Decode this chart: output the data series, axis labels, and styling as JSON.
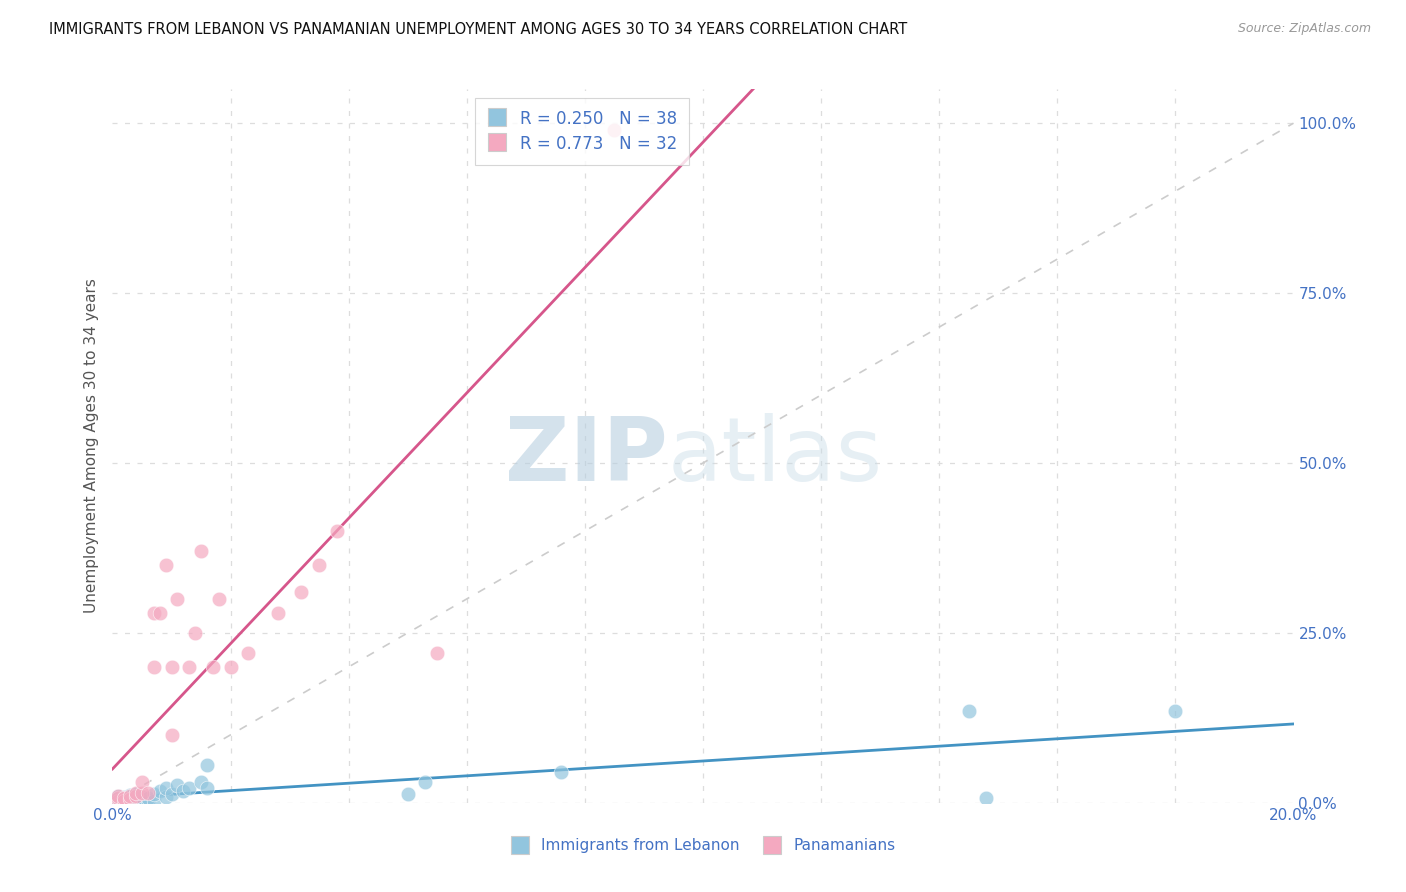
{
  "title": "IMMIGRANTS FROM LEBANON VS PANAMANIAN UNEMPLOYMENT AMONG AGES 30 TO 34 YEARS CORRELATION CHART",
  "source": "Source: ZipAtlas.com",
  "ylabel_label": "Unemployment Among Ages 30 to 34 years",
  "legend_label1": "Immigrants from Lebanon",
  "legend_label2": "Panamanians",
  "R1": 0.25,
  "N1": 38,
  "R2": 0.773,
  "N2": 32,
  "color_blue": "#92c5de",
  "color_pink": "#f4a9c0",
  "color_blue_line": "#4393c3",
  "color_pink_line": "#d6568b",
  "color_diag": "#cccccc",
  "watermark_zip": "ZIP",
  "watermark_atlas": "atlas",
  "blue_x": [
    0.0005,
    0.001,
    0.001,
    0.0015,
    0.002,
    0.002,
    0.002,
    0.0025,
    0.003,
    0.003,
    0.003,
    0.003,
    0.004,
    0.004,
    0.004,
    0.005,
    0.005,
    0.005,
    0.006,
    0.006,
    0.007,
    0.007,
    0.008,
    0.009,
    0.009,
    0.01,
    0.011,
    0.012,
    0.013,
    0.015,
    0.016,
    0.016,
    0.05,
    0.053,
    0.076,
    0.145,
    0.148,
    0.18
  ],
  "blue_y": [
    0.003,
    0.006,
    0.01,
    0.003,
    0.003,
    0.005,
    0.008,
    0.003,
    0.002,
    0.004,
    0.008,
    0.011,
    0.003,
    0.006,
    0.013,
    0.002,
    0.005,
    0.009,
    0.003,
    0.007,
    0.003,
    0.013,
    0.018,
    0.008,
    0.022,
    0.013,
    0.026,
    0.018,
    0.022,
    0.03,
    0.022,
    0.055,
    0.013,
    0.03,
    0.045,
    0.135,
    0.007,
    0.135
  ],
  "pink_x": [
    0.001,
    0.001,
    0.001,
    0.002,
    0.002,
    0.003,
    0.003,
    0.004,
    0.004,
    0.005,
    0.005,
    0.006,
    0.007,
    0.007,
    0.008,
    0.009,
    0.01,
    0.01,
    0.011,
    0.013,
    0.014,
    0.015,
    0.017,
    0.018,
    0.02,
    0.023,
    0.028,
    0.032,
    0.035,
    0.038,
    0.055,
    0.085
  ],
  "pink_y": [
    0.003,
    0.007,
    0.01,
    0.003,
    0.007,
    0.006,
    0.01,
    0.01,
    0.014,
    0.015,
    0.03,
    0.015,
    0.28,
    0.2,
    0.28,
    0.35,
    0.1,
    0.2,
    0.3,
    0.2,
    0.25,
    0.37,
    0.2,
    0.3,
    0.2,
    0.22,
    0.28,
    0.31,
    0.35,
    0.4,
    0.22,
    0.99
  ],
  "xlim": [
    0.0,
    0.2
  ],
  "ylim": [
    0.0,
    1.05
  ],
  "xticks": [
    0.0,
    0.2
  ],
  "yticks": [
    0.0,
    0.25,
    0.5,
    0.75,
    1.0
  ],
  "grid_xticks": [
    0.02,
    0.04,
    0.06,
    0.08,
    0.1,
    0.12,
    0.14,
    0.16,
    0.18
  ]
}
